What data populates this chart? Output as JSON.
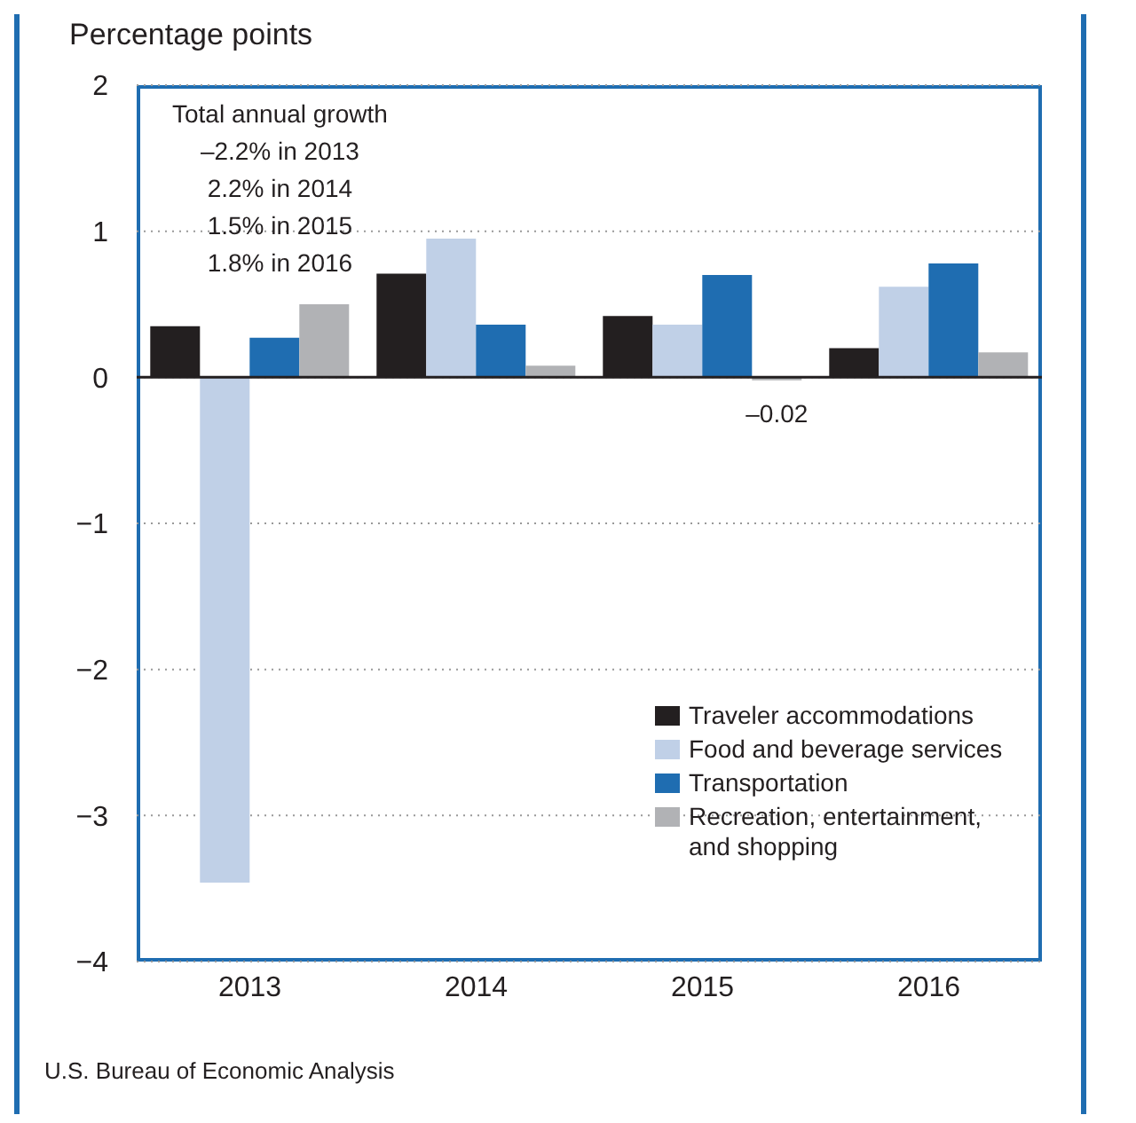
{
  "chart_data": {
    "type": "bar",
    "ylabel": "Percentage points",
    "categories": [
      "2013",
      "2014",
      "2015",
      "2016"
    ],
    "series": [
      {
        "name": "Traveler accommodations",
        "color": "#231f20",
        "values": [
          0.35,
          0.71,
          0.42,
          0.2
        ]
      },
      {
        "name": "Food and beverage services",
        "color": "#c0d0e7",
        "values": [
          -3.46,
          0.95,
          0.36,
          0.62
        ]
      },
      {
        "name": "Transportation",
        "color": "#1f6db1",
        "values": [
          0.27,
          0.36,
          0.7,
          0.78
        ]
      },
      {
        "name": "Recreation, entertainment, and shopping",
        "color": "#b1b2b5",
        "values": [
          0.5,
          0.08,
          -0.02,
          0.17
        ],
        "value_labels": [
          null,
          null,
          "–0.02",
          null
        ]
      }
    ],
    "ylim": [
      -4,
      2
    ],
    "yticks": [
      -4,
      -3,
      -2,
      -1,
      0,
      1,
      2
    ],
    "grid": "y",
    "legend": "bottom right",
    "ref_lines": [
      {
        "axis": "y",
        "value": 0
      }
    ],
    "annotations": [
      "Total annual growth",
      "–2.2% in 2013",
      "2.2% in 2014",
      "1.5% in 2015",
      "1.8% in 2016",
      "U.S. Bureau of Economic Analysis"
    ]
  }
}
